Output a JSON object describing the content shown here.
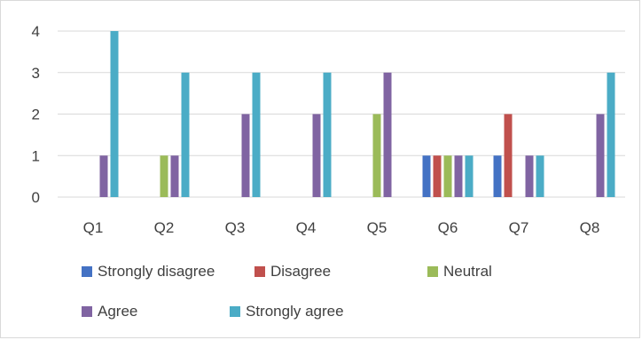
{
  "chart_data": {
    "type": "bar",
    "title": "",
    "xlabel": "",
    "ylabel": "",
    "ylim": [
      0,
      4
    ],
    "yticks": [
      0,
      1,
      2,
      3,
      4
    ],
    "grid": true,
    "legend_position": "bottom",
    "categories": [
      "Q1",
      "Q2",
      "Q3",
      "Q4",
      "Q5",
      "Q6",
      "Q7",
      "Q8"
    ],
    "series": [
      {
        "name": "Strongly disagree",
        "color": "#4472c4",
        "values": [
          0,
          0,
          0,
          0,
          0,
          1,
          1,
          0
        ]
      },
      {
        "name": "Disagree",
        "color": "#c0504d",
        "values": [
          0,
          0,
          0,
          0,
          0,
          1,
          2,
          0
        ]
      },
      {
        "name": "Neutral",
        "color": "#9bbb59",
        "values": [
          0,
          1,
          0,
          0,
          2,
          1,
          0,
          0
        ]
      },
      {
        "name": "Agree",
        "color": "#8064a2",
        "values": [
          1,
          1,
          2,
          2,
          3,
          1,
          1,
          2
        ]
      },
      {
        "name": "Strongly agree",
        "color": "#4bacc6",
        "values": [
          4,
          3,
          3,
          3,
          0,
          1,
          1,
          3
        ]
      }
    ]
  }
}
